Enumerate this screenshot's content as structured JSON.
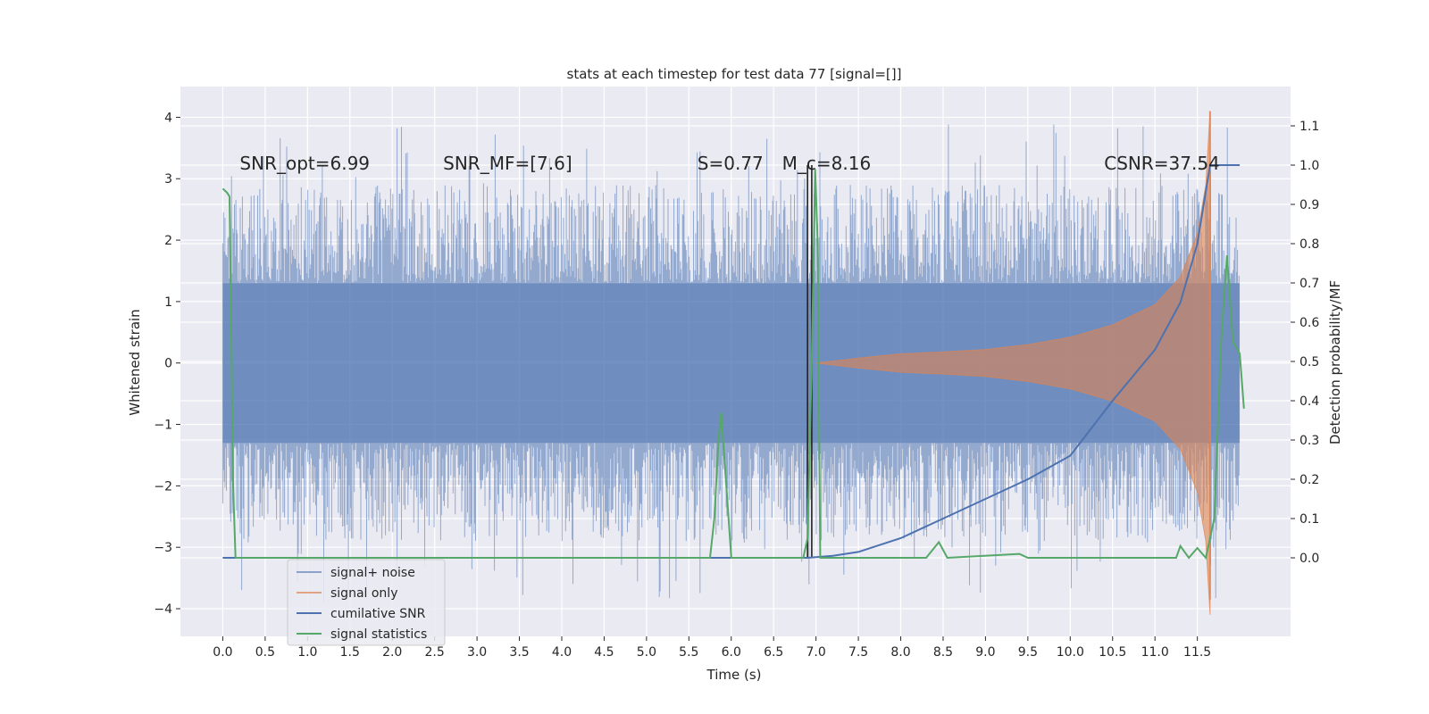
{
  "chart_data": {
    "type": "line",
    "title": "stats at each timestep for test data 77 [signal=[]]",
    "xlabel": "Time (s)",
    "ylabel": "Whitened strain",
    "y2label": "Detection probability/MF",
    "xlim": [
      -0.5,
      12.6
    ],
    "ylim": [
      -4.45,
      4.5
    ],
    "y2lim": [
      -0.2,
      1.2
    ],
    "grid": true,
    "legend_position": "lower-left",
    "xticks": [
      "0.0",
      "0.5",
      "1.0",
      "1.5",
      "2.0",
      "2.5",
      "3.0",
      "3.5",
      "4.0",
      "4.5",
      "5.0",
      "5.5",
      "6.0",
      "6.5",
      "7.0",
      "7.5",
      "8.0",
      "8.5",
      "9.0",
      "9.5",
      "10.0",
      "10.5",
      "11.0",
      "11.5"
    ],
    "yticks": [
      "4",
      "3",
      "2",
      "1",
      "0",
      "−1",
      "−2",
      "−3",
      "−4"
    ],
    "y2ticks": [
      "1.1",
      "1.0",
      "0.9",
      "0.8",
      "0.7",
      "0.6",
      "0.5",
      "0.4",
      "0.3",
      "0.2",
      "0.1",
      "0.0"
    ],
    "annotations": [
      {
        "text": "SNR_opt=6.99",
        "x": 0.2,
        "y": 3.25
      },
      {
        "text": "SNR_MF=[7.6]",
        "x": 2.6,
        "y": 3.25
      },
      {
        "text": "S=0.77",
        "x": 5.6,
        "y": 3.25
      },
      {
        "text": "M_c=8.16",
        "x": 6.6,
        "y": 3.25
      },
      {
        "text": "CSNR=37.54",
        "x": 10.4,
        "y": 3.25
      }
    ],
    "vlines": [
      {
        "x": 6.9,
        "color": "#222222"
      },
      {
        "x": 6.95,
        "color": "#222222"
      }
    ],
    "noise_series": {
      "name": "signal+ noise",
      "color": "#4c72b0",
      "t_start": 0.0,
      "t_end": 12.0,
      "envelope_inner": 1.3,
      "envelope_outer": 4.1
    },
    "signal_series": {
      "name": "signal only",
      "color": "#dd8452",
      "t_start": 7.0,
      "t_peak": 11.65,
      "amplitude": [
        [
          7.0,
          0.0
        ],
        [
          7.5,
          0.08
        ],
        [
          8.0,
          0.15
        ],
        [
          8.5,
          0.18
        ],
        [
          9.0,
          0.22
        ],
        [
          9.5,
          0.3
        ],
        [
          10.0,
          0.42
        ],
        [
          10.5,
          0.62
        ],
        [
          11.0,
          0.95
        ],
        [
          11.3,
          1.4
        ],
        [
          11.5,
          2.1
        ],
        [
          11.6,
          2.9
        ],
        [
          11.65,
          4.1
        ]
      ]
    },
    "cumulative_snr": {
      "name": "cumilative SNR",
      "color": "#4c72b0",
      "points": [
        [
          0.0,
          0.0
        ],
        [
          6.9,
          0.0
        ],
        [
          7.2,
          0.005
        ],
        [
          7.5,
          0.015
        ],
        [
          8.0,
          0.05
        ],
        [
          8.5,
          0.1
        ],
        [
          9.0,
          0.15
        ],
        [
          9.5,
          0.2
        ],
        [
          10.0,
          0.26
        ],
        [
          10.5,
          0.4
        ],
        [
          11.0,
          0.53
        ],
        [
          11.3,
          0.65
        ],
        [
          11.5,
          0.8
        ],
        [
          11.65,
          1.0
        ],
        [
          12.0,
          1.0
        ]
      ]
    },
    "signal_statistics": {
      "name": "signal statistics",
      "color": "#55a868",
      "points": [
        [
          0.0,
          0.94
        ],
        [
          0.05,
          0.93
        ],
        [
          0.08,
          0.92
        ],
        [
          0.1,
          0.6
        ],
        [
          0.12,
          0.2
        ],
        [
          0.15,
          0.0
        ],
        [
          5.75,
          0.0
        ],
        [
          5.8,
          0.1
        ],
        [
          5.85,
          0.3
        ],
        [
          5.88,
          0.37
        ],
        [
          5.92,
          0.25
        ],
        [
          6.0,
          0.0
        ],
        [
          6.85,
          0.0
        ],
        [
          6.9,
          0.05
        ],
        [
          6.95,
          0.5
        ],
        [
          6.99,
          0.99
        ],
        [
          7.02,
          0.8
        ],
        [
          7.05,
          0.0
        ],
        [
          8.3,
          0.0
        ],
        [
          8.45,
          0.04
        ],
        [
          8.55,
          0.0
        ],
        [
          9.4,
          0.01
        ],
        [
          9.5,
          0.0
        ],
        [
          11.25,
          0.0
        ],
        [
          11.3,
          0.03
        ],
        [
          11.4,
          0.0
        ],
        [
          11.5,
          0.025
        ],
        [
          11.6,
          0.0
        ],
        [
          11.7,
          0.1
        ],
        [
          11.78,
          0.55
        ],
        [
          11.85,
          0.77
        ],
        [
          11.92,
          0.55
        ],
        [
          12.0,
          0.52
        ],
        [
          12.05,
          0.38
        ]
      ]
    }
  }
}
